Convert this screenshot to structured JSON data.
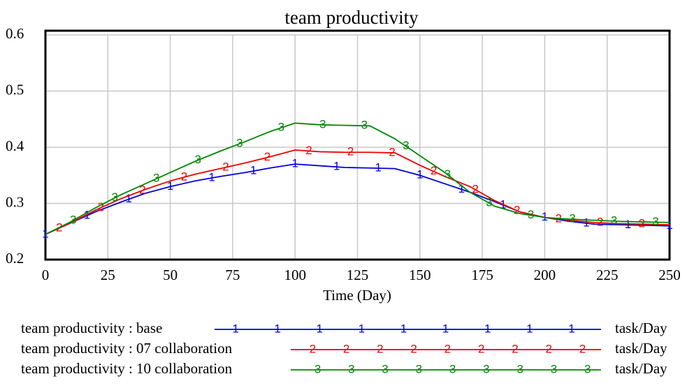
{
  "chart_data": {
    "type": "line",
    "title": "team productivity",
    "x_label": "Time (Day)",
    "x": [
      0,
      10,
      20,
      30,
      40,
      50,
      60,
      70,
      80,
      90,
      100,
      110,
      120,
      130,
      140,
      150,
      160,
      170,
      180,
      190,
      200,
      210,
      220,
      230,
      240,
      250
    ],
    "series": [
      {
        "name": "team productivity : base",
        "color": "#0000dd",
        "marker": "1",
        "unit": "task/Day",
        "values": [
          0.245,
          0.265,
          0.285,
          0.302,
          0.318,
          0.33,
          0.34,
          0.348,
          0.355,
          0.363,
          0.37,
          0.367,
          0.364,
          0.363,
          0.362,
          0.35,
          0.335,
          0.32,
          0.303,
          0.285,
          0.275,
          0.268,
          0.263,
          0.262,
          0.261,
          0.26
        ]
      },
      {
        "name": "team productivity : 07 collaboration",
        "color": "#ee0000",
        "marker": "2",
        "unit": "task/Day",
        "values": [
          0.245,
          0.265,
          0.288,
          0.308,
          0.325,
          0.34,
          0.352,
          0.362,
          0.372,
          0.383,
          0.395,
          0.392,
          0.391,
          0.391,
          0.39,
          0.368,
          0.348,
          0.33,
          0.305,
          0.285,
          0.275,
          0.27,
          0.266,
          0.264,
          0.263,
          0.262
        ]
      },
      {
        "name": "team productivity : 10 collaboration",
        "color": "#008800",
        "marker": "3",
        "unit": "task/Day",
        "values": [
          0.245,
          0.267,
          0.292,
          0.315,
          0.335,
          0.355,
          0.375,
          0.393,
          0.41,
          0.428,
          0.443,
          0.44,
          0.439,
          0.438,
          0.415,
          0.385,
          0.355,
          0.32,
          0.295,
          0.282,
          0.275,
          0.272,
          0.27,
          0.268,
          0.267,
          0.266
        ]
      }
    ],
    "xlim": [
      0,
      250
    ],
    "xticks": [
      0,
      25,
      50,
      75,
      100,
      125,
      150,
      175,
      200,
      225,
      250
    ],
    "ylim": [
      0.2,
      0.6
    ],
    "yticks": [
      0.2,
      0.3,
      0.4,
      0.5,
      0.6
    ],
    "grid": true
  }
}
